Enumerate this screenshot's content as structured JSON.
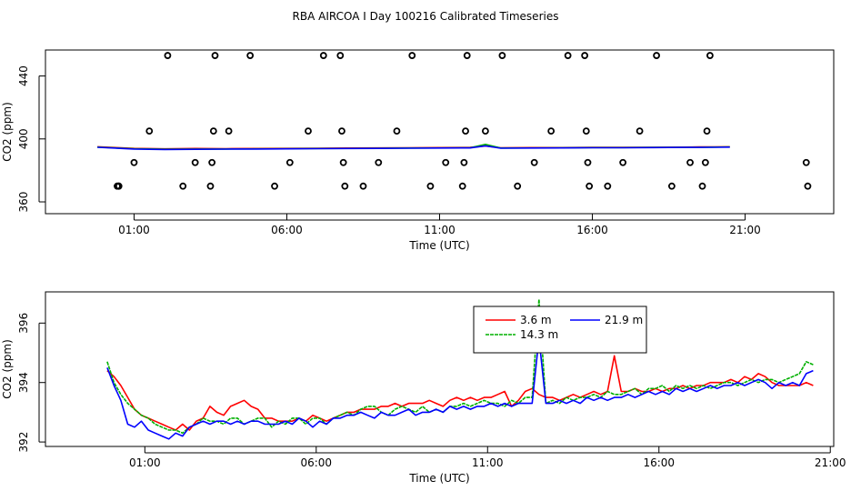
{
  "figure": {
    "title": "RBA AIRCOA I  Day 100216  Calibrated Timeseries"
  },
  "chart_data": [
    {
      "type": "scatter",
      "title": "",
      "xlabel": "Time (UTC)",
      "ylabel": "CO2 (ppm)",
      "xlim": [
        -1.9,
        23.9
      ],
      "ylim": [
        352.5,
        456.5
      ],
      "x_ticks": [
        1,
        6,
        11,
        16,
        21
      ],
      "x_tick_labels": [
        "01:00",
        "06:00",
        "11:00",
        "16:00",
        "21:00"
      ],
      "y_ticks": [
        360,
        400,
        440
      ],
      "y_tick_labels": [
        "360",
        "400",
        "440"
      ],
      "markers": {
        "style": "open-circle",
        "points": [
          [
            0.45,
            370
          ],
          [
            0.5,
            370
          ],
          [
            0.5,
            370
          ],
          [
            1.0,
            385
          ],
          [
            1.5,
            405
          ],
          [
            2.1,
            453
          ],
          [
            2.6,
            370
          ],
          [
            3.0,
            385
          ],
          [
            3.5,
            370
          ],
          [
            3.55,
            385
          ],
          [
            3.6,
            405
          ],
          [
            3.65,
            453
          ],
          [
            4.1,
            405
          ],
          [
            4.8,
            453
          ],
          [
            5.6,
            370
          ],
          [
            6.1,
            385
          ],
          [
            6.7,
            405
          ],
          [
            7.2,
            453
          ],
          [
            7.75,
            453
          ],
          [
            7.8,
            405
          ],
          [
            7.85,
            385
          ],
          [
            7.9,
            370
          ],
          [
            8.5,
            370
          ],
          [
            9.0,
            385
          ],
          [
            9.6,
            405
          ],
          [
            10.1,
            453
          ],
          [
            10.7,
            370
          ],
          [
            11.2,
            385
          ],
          [
            11.75,
            370
          ],
          [
            11.8,
            385
          ],
          [
            11.85,
            405
          ],
          [
            11.9,
            453
          ],
          [
            12.5,
            405
          ],
          [
            13.05,
            453
          ],
          [
            13.55,
            370
          ],
          [
            14.1,
            385
          ],
          [
            14.65,
            405
          ],
          [
            15.2,
            453
          ],
          [
            15.75,
            453
          ],
          [
            15.8,
            405
          ],
          [
            15.85,
            385
          ],
          [
            15.9,
            370
          ],
          [
            16.5,
            370
          ],
          [
            17.0,
            385
          ],
          [
            17.55,
            405
          ],
          [
            18.1,
            453
          ],
          [
            18.6,
            370
          ],
          [
            19.2,
            385
          ],
          [
            19.6,
            370
          ],
          [
            19.7,
            385
          ],
          [
            19.75,
            405
          ],
          [
            19.85,
            453
          ],
          [
            23.0,
            385
          ],
          [
            23.05,
            370
          ]
        ]
      },
      "series": [
        {
          "name": "3.6 m",
          "color": "#ff0000",
          "x": [
            -0.2,
            1.0,
            2.0,
            3.0,
            4.0,
            5.0,
            6.0,
            7.0,
            8.0,
            9.0,
            10.0,
            11.0,
            12.0,
            12.5,
            13.0,
            14.0,
            15.0,
            16.0,
            17.0,
            18.0,
            19.0,
            19.5,
            20.0,
            20.5
          ],
          "values": [
            395.0,
            394.0,
            393.7,
            393.9,
            393.8,
            393.9,
            394.0,
            394.1,
            394.2,
            394.3,
            394.4,
            394.5,
            394.6,
            395.5,
            394.4,
            394.5,
            394.5,
            394.6,
            394.6,
            394.7,
            394.8,
            394.9,
            394.9,
            395.0
          ]
        },
        {
          "name": "14.3 m",
          "color": "#00b000",
          "x": [
            -0.2,
            1.0,
            2.0,
            3.0,
            4.0,
            5.0,
            6.0,
            7.0,
            8.0,
            9.0,
            10.0,
            11.0,
            12.0,
            12.5,
            13.0,
            14.0,
            15.0,
            16.0,
            17.0,
            18.0,
            19.0,
            19.5,
            20.0,
            20.5
          ],
          "values": [
            394.8,
            393.8,
            393.5,
            393.6,
            393.6,
            393.7,
            393.8,
            393.9,
            394.0,
            394.1,
            394.2,
            394.3,
            394.4,
            396.5,
            394.2,
            394.3,
            394.4,
            394.5,
            394.5,
            394.6,
            394.7,
            394.7,
            394.8,
            394.9
          ]
        },
        {
          "name": "21.9 m",
          "color": "#0000ff",
          "x": [
            -0.2,
            1.0,
            2.0,
            3.0,
            4.0,
            5.0,
            6.0,
            7.0,
            8.0,
            9.0,
            10.0,
            11.0,
            12.0,
            12.5,
            13.0,
            14.0,
            15.0,
            16.0,
            17.0,
            18.0,
            19.0,
            19.5,
            20.0,
            20.5
          ],
          "values": [
            394.7,
            393.6,
            393.3,
            393.4,
            393.5,
            393.6,
            393.7,
            393.8,
            393.9,
            394.0,
            394.1,
            394.2,
            394.3,
            395.6,
            394.1,
            394.2,
            394.3,
            394.4,
            394.4,
            394.5,
            394.6,
            394.6,
            394.7,
            394.8
          ]
        }
      ]
    },
    {
      "type": "line",
      "title": "",
      "xlabel": "Time (UTC)",
      "ylabel": "CO2 (ppm)",
      "xlim": [
        -1.9,
        21.1
      ],
      "ylim": [
        391.85,
        397.05
      ],
      "x_ticks": [
        1,
        6,
        11,
        16,
        21
      ],
      "x_tick_labels": [
        "01:00",
        "06:00",
        "11:00",
        "16:00",
        "21:00"
      ],
      "y_ticks": [
        392,
        394,
        396
      ],
      "y_tick_labels": [
        "392",
        "394",
        "396"
      ],
      "legend": {
        "position": "top-center",
        "entries": [
          {
            "label": "3.6 m",
            "color": "#ff0000",
            "style": "solid"
          },
          {
            "label": "21.9 m",
            "color": "#0000ff",
            "style": "solid"
          },
          {
            "label": "14.3 m",
            "color": "#00b000",
            "style": "dotted"
          }
        ]
      },
      "series": [
        {
          "name": "3.6 m",
          "color": "#ff0000",
          "x": [
            -0.1,
            0.1,
            0.3,
            0.5,
            0.7,
            0.9,
            1.1,
            1.3,
            1.5,
            1.7,
            1.9,
            2.1,
            2.3,
            2.5,
            2.7,
            2.9,
            3.1,
            3.3,
            3.5,
            3.7,
            3.9,
            4.1,
            4.3,
            4.5,
            4.7,
            4.9,
            5.1,
            5.3,
            5.5,
            5.7,
            5.9,
            6.1,
            6.3,
            6.5,
            6.7,
            6.9,
            7.1,
            7.3,
            7.5,
            7.7,
            7.9,
            8.1,
            8.3,
            8.5,
            8.7,
            8.9,
            9.1,
            9.3,
            9.5,
            9.7,
            9.9,
            10.1,
            10.3,
            10.5,
            10.7,
            10.9,
            11.1,
            11.3,
            11.5,
            11.7,
            11.9,
            12.1,
            12.3,
            12.5,
            12.7,
            12.9,
            13.1,
            13.3,
            13.5,
            13.7,
            13.9,
            14.1,
            14.3,
            14.5,
            14.7,
            14.9,
            15.1,
            15.3,
            15.5,
            15.7,
            15.9,
            16.1,
            16.3,
            16.5,
            16.7,
            16.9,
            17.1,
            17.3,
            17.5,
            17.7,
            17.9,
            18.1,
            18.3,
            18.5,
            18.7,
            18.9,
            19.1,
            19.3,
            19.5,
            19.7,
            19.9,
            20.1,
            20.3,
            20.5
          ],
          "values": [
            394.4,
            394.2,
            393.9,
            393.5,
            393.1,
            392.9,
            392.8,
            392.7,
            392.6,
            392.5,
            392.4,
            392.6,
            392.4,
            392.7,
            392.8,
            393.2,
            393.0,
            392.9,
            393.2,
            393.3,
            393.4,
            393.2,
            393.1,
            392.8,
            392.8,
            392.7,
            392.7,
            392.7,
            392.8,
            392.7,
            392.9,
            392.8,
            392.7,
            392.8,
            392.9,
            393.0,
            393.0,
            393.1,
            393.1,
            393.1,
            393.2,
            393.2,
            393.3,
            393.2,
            393.3,
            393.3,
            393.3,
            393.4,
            393.3,
            393.2,
            393.4,
            393.5,
            393.4,
            393.5,
            393.4,
            393.5,
            393.5,
            393.6,
            393.7,
            393.2,
            393.4,
            393.7,
            393.8,
            393.6,
            393.5,
            393.5,
            393.4,
            393.5,
            393.6,
            393.5,
            393.6,
            393.7,
            393.6,
            393.7,
            394.9,
            393.7,
            393.7,
            393.8,
            393.7,
            393.7,
            393.8,
            393.7,
            393.8,
            393.8,
            393.9,
            393.8,
            393.9,
            393.9,
            394.0,
            394.0,
            394.0,
            394.1,
            394.0,
            394.2,
            394.1,
            394.3,
            394.2,
            394.0,
            393.9,
            393.9,
            393.9,
            393.9,
            394.0,
            393.9
          ]
        },
        {
          "name": "14.3 m",
          "color": "#00b000",
          "x": [
            -0.1,
            0.1,
            0.3,
            0.5,
            0.7,
            0.9,
            1.1,
            1.3,
            1.5,
            1.7,
            1.9,
            2.1,
            2.3,
            2.5,
            2.7,
            2.9,
            3.1,
            3.3,
            3.5,
            3.7,
            3.9,
            4.1,
            4.3,
            4.5,
            4.7,
            4.9,
            5.1,
            5.3,
            5.5,
            5.7,
            5.9,
            6.1,
            6.3,
            6.5,
            6.7,
            6.9,
            7.1,
            7.3,
            7.5,
            7.7,
            7.9,
            8.1,
            8.3,
            8.5,
            8.7,
            8.9,
            9.1,
            9.3,
            9.5,
            9.7,
            9.9,
            10.1,
            10.3,
            10.5,
            10.7,
            10.9,
            11.1,
            11.3,
            11.5,
            11.7,
            11.9,
            12.1,
            12.3,
            12.5,
            12.7,
            12.9,
            13.1,
            13.3,
            13.5,
            13.7,
            13.9,
            14.1,
            14.3,
            14.5,
            14.7,
            14.9,
            15.1,
            15.3,
            15.5,
            15.7,
            15.9,
            16.1,
            16.3,
            16.5,
            16.7,
            16.9,
            17.1,
            17.3,
            17.5,
            17.7,
            17.9,
            18.1,
            18.3,
            18.5,
            18.7,
            18.9,
            19.1,
            19.3,
            19.5,
            19.7,
            19.9,
            20.1,
            20.3,
            20.5
          ],
          "values": [
            394.7,
            394.0,
            393.6,
            393.3,
            393.1,
            392.9,
            392.8,
            392.6,
            392.5,
            392.4,
            392.4,
            392.3,
            392.5,
            392.6,
            392.8,
            392.7,
            392.7,
            392.6,
            392.8,
            392.8,
            392.6,
            392.7,
            392.8,
            392.8,
            392.5,
            392.7,
            392.6,
            392.8,
            392.8,
            392.6,
            392.8,
            392.8,
            392.6,
            392.8,
            392.9,
            393.0,
            392.9,
            393.1,
            393.2,
            393.2,
            393.0,
            392.9,
            393.1,
            393.2,
            393.1,
            393.0,
            393.2,
            393.0,
            393.1,
            393.0,
            393.2,
            393.2,
            393.3,
            393.2,
            393.3,
            393.4,
            393.3,
            393.3,
            393.2,
            393.4,
            393.3,
            393.5,
            393.5,
            396.8,
            393.3,
            393.4,
            393.3,
            393.5,
            393.4,
            393.5,
            393.5,
            393.6,
            393.5,
            393.7,
            393.6,
            393.6,
            393.7,
            393.8,
            393.6,
            393.8,
            393.8,
            393.9,
            393.7,
            393.9,
            393.8,
            393.9,
            393.8,
            393.9,
            393.8,
            393.9,
            394.0,
            394.0,
            393.9,
            394.0,
            394.1,
            394.0,
            394.1,
            394.1,
            394.0,
            394.1,
            394.2,
            394.3,
            394.7,
            394.6
          ]
        },
        {
          "name": "21.9 m",
          "color": "#0000ff",
          "x": [
            -0.1,
            0.1,
            0.3,
            0.5,
            0.7,
            0.9,
            1.1,
            1.3,
            1.5,
            1.7,
            1.9,
            2.1,
            2.3,
            2.5,
            2.7,
            2.9,
            3.1,
            3.3,
            3.5,
            3.7,
            3.9,
            4.1,
            4.3,
            4.5,
            4.7,
            4.9,
            5.1,
            5.3,
            5.5,
            5.7,
            5.9,
            6.1,
            6.3,
            6.5,
            6.7,
            6.9,
            7.1,
            7.3,
            7.5,
            7.7,
            7.9,
            8.1,
            8.3,
            8.5,
            8.7,
            8.9,
            9.1,
            9.3,
            9.5,
            9.7,
            9.9,
            10.1,
            10.3,
            10.5,
            10.7,
            10.9,
            11.1,
            11.3,
            11.5,
            11.7,
            11.9,
            12.1,
            12.3,
            12.5,
            12.7,
            12.9,
            13.1,
            13.3,
            13.5,
            13.7,
            13.9,
            14.1,
            14.3,
            14.5,
            14.7,
            14.9,
            15.1,
            15.3,
            15.5,
            15.7,
            15.9,
            16.1,
            16.3,
            16.5,
            16.7,
            16.9,
            17.1,
            17.3,
            17.5,
            17.7,
            17.9,
            18.1,
            18.3,
            18.5,
            18.7,
            18.9,
            19.1,
            19.3,
            19.5,
            19.7,
            19.9,
            20.1,
            20.3,
            20.5
          ],
          "values": [
            394.5,
            393.9,
            393.4,
            392.6,
            392.5,
            392.7,
            392.4,
            392.3,
            392.2,
            392.1,
            392.3,
            392.2,
            392.5,
            392.6,
            392.7,
            392.6,
            392.7,
            392.7,
            392.6,
            392.7,
            392.6,
            392.7,
            392.7,
            392.6,
            392.6,
            392.6,
            392.7,
            392.6,
            392.8,
            392.7,
            392.5,
            392.7,
            392.6,
            392.8,
            392.8,
            392.9,
            392.9,
            393.0,
            392.9,
            392.8,
            393.0,
            392.9,
            392.9,
            393.0,
            393.1,
            392.9,
            393.0,
            393.0,
            393.1,
            393.0,
            393.2,
            393.1,
            393.2,
            393.1,
            393.2,
            393.2,
            393.3,
            393.2,
            393.3,
            393.2,
            393.3,
            393.3,
            393.3,
            395.5,
            393.3,
            393.3,
            393.4,
            393.3,
            393.4,
            393.3,
            393.5,
            393.4,
            393.5,
            393.4,
            393.5,
            393.5,
            393.6,
            393.5,
            393.6,
            393.7,
            393.6,
            393.7,
            393.6,
            393.8,
            393.7,
            393.8,
            393.7,
            393.8,
            393.9,
            393.8,
            393.9,
            393.9,
            394.0,
            393.9,
            394.0,
            394.1,
            394.0,
            393.8,
            394.0,
            393.9,
            394.0,
            393.9,
            394.3,
            394.4
          ]
        }
      ]
    }
  ]
}
